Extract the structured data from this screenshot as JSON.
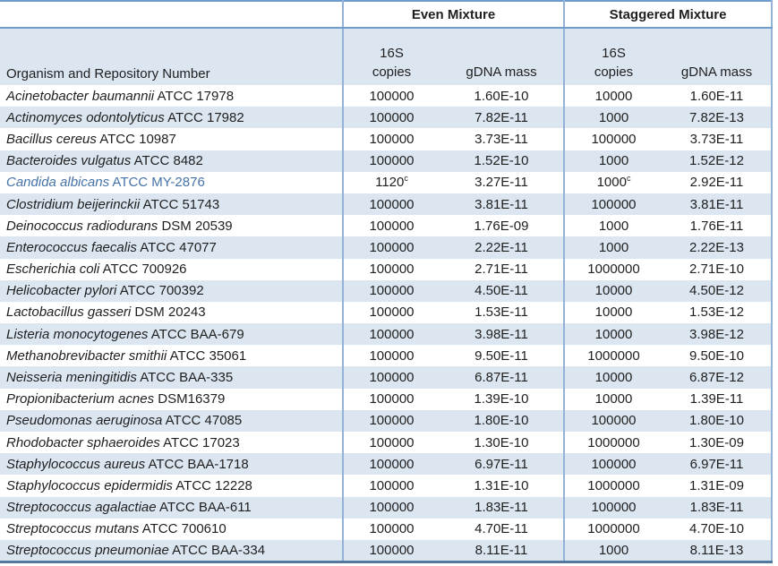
{
  "colors": {
    "band_fill": "#dce6f1",
    "vertical_border": "#95b3d7",
    "horizontal_border": "#6f9ccc",
    "bottom_border": "#54779f",
    "highlight_text": "#4573a7",
    "body_text": "#1f1f1f"
  },
  "table": {
    "group_headers": [
      {
        "label": ""
      },
      {
        "label": "Even Mixture"
      },
      {
        "label": "Staggered Mixture"
      }
    ],
    "column_headers": {
      "organism": "Organism and Repository Number",
      "copies_line1": "16S",
      "copies_line2": "copies",
      "gdna": "gDNA mass"
    },
    "footnote_marker": "c",
    "rows": [
      {
        "organism": "Acinetobacter baumannii",
        "repository": "ATCC 17978",
        "even_copies": "100000",
        "even_copies_sup": "",
        "even_gdna": "1.60E-10",
        "stag_copies": "10000",
        "stag_copies_sup": "",
        "stag_gdna": "1.60E-11",
        "highlight": false
      },
      {
        "organism": "Actinomyces odontolyticus",
        "repository": "ATCC 17982",
        "even_copies": "100000",
        "even_copies_sup": "",
        "even_gdna": "7.82E-11",
        "stag_copies": "1000",
        "stag_copies_sup": "",
        "stag_gdna": "7.82E-13",
        "highlight": false
      },
      {
        "organism": "Bacillus cereus",
        "repository": "ATCC 10987",
        "even_copies": "100000",
        "even_copies_sup": "",
        "even_gdna": "3.73E-11",
        "stag_copies": "100000",
        "stag_copies_sup": "",
        "stag_gdna": "3.73E-11",
        "highlight": false
      },
      {
        "organism": "Bacteroides vulgatus",
        "repository": "ATCC 8482",
        "even_copies": "100000",
        "even_copies_sup": "",
        "even_gdna": "1.52E-10",
        "stag_copies": "1000",
        "stag_copies_sup": "",
        "stag_gdna": "1.52E-12",
        "highlight": false
      },
      {
        "organism": "Candida albicans",
        "repository": "ATCC MY-2876",
        "even_copies": "1120",
        "even_copies_sup": "c",
        "even_gdna": "3.27E-11",
        "stag_copies": "1000",
        "stag_copies_sup": "c",
        "stag_gdna": "2.92E-11",
        "highlight": true
      },
      {
        "organism": "Clostridium beijerinckii",
        "repository": "ATCC 51743",
        "even_copies": "100000",
        "even_copies_sup": "",
        "even_gdna": "3.81E-11",
        "stag_copies": "100000",
        "stag_copies_sup": "",
        "stag_gdna": "3.81E-11",
        "highlight": false
      },
      {
        "organism": "Deinococcus radiodurans",
        "repository": "DSM 20539",
        "even_copies": "100000",
        "even_copies_sup": "",
        "even_gdna": "1.76E-09",
        "stag_copies": "1000",
        "stag_copies_sup": "",
        "stag_gdna": "1.76E-11",
        "highlight": false
      },
      {
        "organism": "Enterococcus faecalis",
        "repository": "ATCC 47077",
        "even_copies": "100000",
        "even_copies_sup": "",
        "even_gdna": "2.22E-11",
        "stag_copies": "1000",
        "stag_copies_sup": "",
        "stag_gdna": "2.22E-13",
        "highlight": false
      },
      {
        "organism": "Escherichia coli",
        "repository": "ATCC 700926",
        "even_copies": "100000",
        "even_copies_sup": "",
        "even_gdna": "2.71E-11",
        "stag_copies": "1000000",
        "stag_copies_sup": "",
        "stag_gdna": "2.71E-10",
        "highlight": false
      },
      {
        "organism": "Helicobacter pylori",
        "repository": "ATCC 700392",
        "even_copies": "100000",
        "even_copies_sup": "",
        "even_gdna": "4.50E-11",
        "stag_copies": "10000",
        "stag_copies_sup": "",
        "stag_gdna": "4.50E-12",
        "highlight": false
      },
      {
        "organism": "Lactobacillus gasseri",
        "repository": "DSM 20243",
        "even_copies": "100000",
        "even_copies_sup": "",
        "even_gdna": "1.53E-11",
        "stag_copies": "10000",
        "stag_copies_sup": "",
        "stag_gdna": "1.53E-12",
        "highlight": false
      },
      {
        "organism": "Listeria monocytogenes",
        "repository": "ATCC BAA-679",
        "even_copies": "100000",
        "even_copies_sup": "",
        "even_gdna": "3.98E-11",
        "stag_copies": "10000",
        "stag_copies_sup": "",
        "stag_gdna": "3.98E-12",
        "highlight": false
      },
      {
        "organism": "Methanobrevibacter smithii",
        "repository": "ATCC 35061",
        "even_copies": "100000",
        "even_copies_sup": "",
        "even_gdna": "9.50E-11",
        "stag_copies": "1000000",
        "stag_copies_sup": "",
        "stag_gdna": "9.50E-10",
        "highlight": false
      },
      {
        "organism": "Neisseria meningitidis",
        "repository": "ATCC BAA-335",
        "even_copies": "100000",
        "even_copies_sup": "",
        "even_gdna": "6.87E-11",
        "stag_copies": "10000",
        "stag_copies_sup": "",
        "stag_gdna": "6.87E-12",
        "highlight": false
      },
      {
        "organism": "Propionibacterium acnes",
        "repository": "DSM16379",
        "even_copies": "100000",
        "even_copies_sup": "",
        "even_gdna": "1.39E-10",
        "stag_copies": "10000",
        "stag_copies_sup": "",
        "stag_gdna": "1.39E-11",
        "highlight": false
      },
      {
        "organism": "Pseudomonas aeruginosa",
        "repository": "ATCC 47085",
        "even_copies": "100000",
        "even_copies_sup": "",
        "even_gdna": "1.80E-10",
        "stag_copies": "100000",
        "stag_copies_sup": "",
        "stag_gdna": "1.80E-10",
        "highlight": false
      },
      {
        "organism": "Rhodobacter sphaeroides",
        "repository": "ATCC 17023",
        "even_copies": "100000",
        "even_copies_sup": "",
        "even_gdna": "1.30E-10",
        "stag_copies": "1000000",
        "stag_copies_sup": "",
        "stag_gdna": "1.30E-09",
        "highlight": false
      },
      {
        "organism": "Staphylococcus aureus",
        "repository": "ATCC BAA-1718",
        "even_copies": "100000",
        "even_copies_sup": "",
        "even_gdna": "6.97E-11",
        "stag_copies": "100000",
        "stag_copies_sup": "",
        "stag_gdna": "6.97E-11",
        "highlight": false
      },
      {
        "organism": "Staphylococcus epidermidis",
        "repository": "ATCC 12228",
        "even_copies": "100000",
        "even_copies_sup": "",
        "even_gdna": "1.31E-10",
        "stag_copies": "1000000",
        "stag_copies_sup": "",
        "stag_gdna": "1.31E-09",
        "highlight": false
      },
      {
        "organism": "Streptococcus agalactiae",
        "repository": "ATCC BAA-611",
        "even_copies": "100000",
        "even_copies_sup": "",
        "even_gdna": "1.83E-11",
        "stag_copies": "100000",
        "stag_copies_sup": "",
        "stag_gdna": "1.83E-11",
        "highlight": false
      },
      {
        "organism": "Streptococcus mutans",
        "repository": "ATCC 700610",
        "even_copies": "100000",
        "even_copies_sup": "",
        "even_gdna": "4.70E-11",
        "stag_copies": "1000000",
        "stag_copies_sup": "",
        "stag_gdna": "4.70E-10",
        "highlight": false
      },
      {
        "organism": "Streptococcus pneumoniae",
        "repository": "ATCC BAA-334",
        "even_copies": "100000",
        "even_copies_sup": "",
        "even_gdna": "8.11E-11",
        "stag_copies": "1000",
        "stag_copies_sup": "",
        "stag_gdna": "8.11E-13",
        "highlight": false
      }
    ]
  }
}
